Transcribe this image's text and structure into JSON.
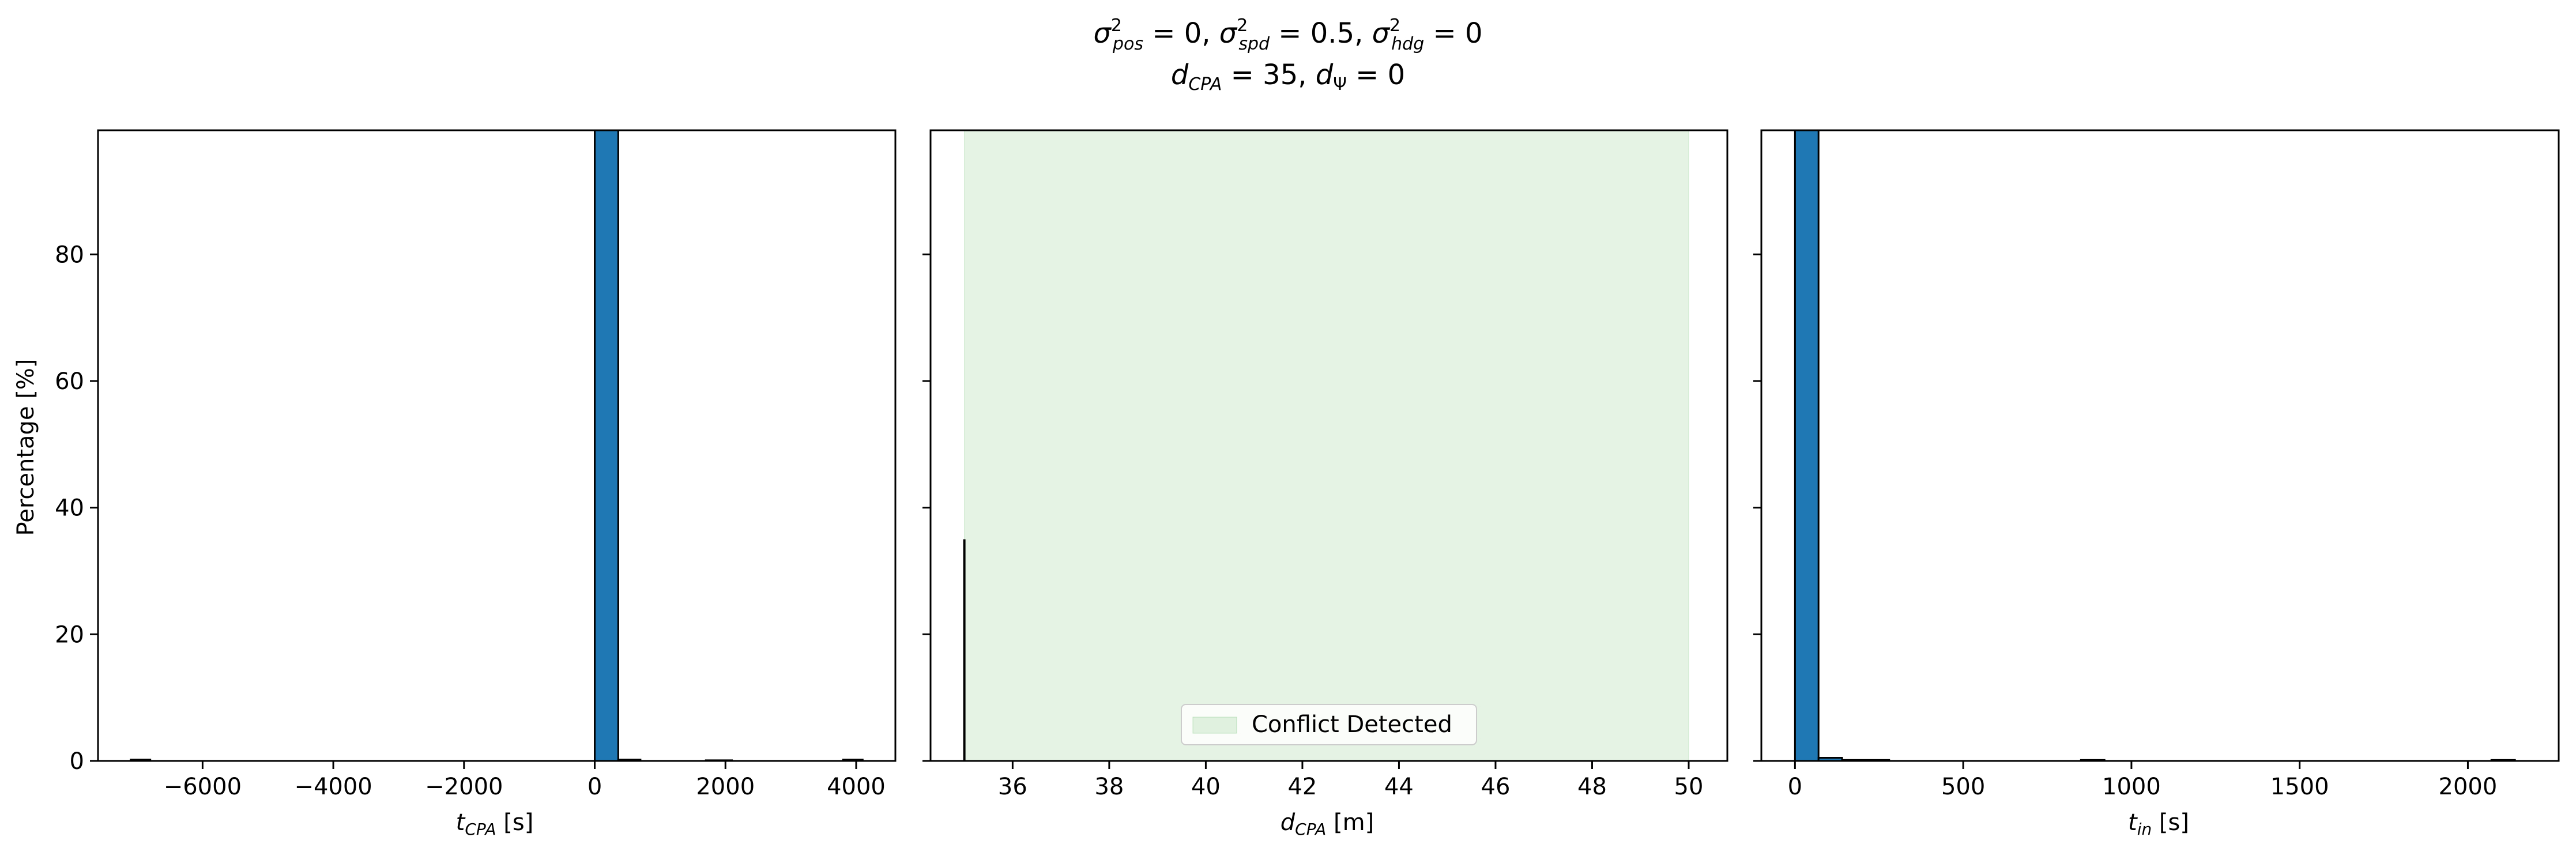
{
  "figure": {
    "title_line1": "σ²pos = 0, σ²spd = 0.5, σ²hdg = 0",
    "title_line2": "dCPA = 35, dΨ = 0"
  },
  "chart_data": [
    {
      "type": "bar",
      "panel": "left",
      "xlabel": "t_CPA [s]",
      "ylabel": "Percentage [%]",
      "xlim": [
        -7600,
        4600
      ],
      "ylim": [
        0,
        99.6
      ],
      "xticks": [
        -6000,
        -4000,
        -2000,
        0,
        2000,
        4000
      ],
      "xtick_labels": [
        "−6000",
        "−4000",
        "−2000",
        "0",
        "2000",
        "4000"
      ],
      "yticks": [
        0,
        20,
        40,
        60,
        80
      ],
      "ytick_labels": [
        "0",
        "20",
        "40",
        "60",
        "80"
      ],
      "bars": [
        {
          "x0": -7100,
          "x1": -6800,
          "value": 0.2
        },
        {
          "x0": 0,
          "x1": 360,
          "value": 99.6
        },
        {
          "x0": 360,
          "x1": 700,
          "value": 0.2
        },
        {
          "x0": 1700,
          "x1": 2100,
          "value": 0.1
        },
        {
          "x0": 3800,
          "x1": 4100,
          "value": 0.2
        }
      ],
      "bar_color": "#1f77b4"
    },
    {
      "type": "bar",
      "panel": "middle",
      "xlabel": "d_CPA [m]",
      "ylabel": "",
      "xlim": [
        34.3,
        50.8
      ],
      "ylim": [
        0,
        99.6
      ],
      "xticks": [
        36,
        38,
        40,
        42,
        44,
        46,
        48,
        50
      ],
      "xtick_labels": [
        "36",
        "38",
        "40",
        "42",
        "44",
        "46",
        "48",
        "50"
      ],
      "yticks": [
        0,
        20,
        40,
        60,
        80
      ],
      "bars": [
        {
          "x0": 35.0,
          "x1": 35.0,
          "value": 35
        }
      ],
      "bar_color": "#1f77b4",
      "shaded_region": {
        "x0": 35,
        "x1": 50,
        "label": "Conflict Detected",
        "color": "#2ca02c",
        "alpha": 0.12
      },
      "legend": {
        "entries": [
          "Conflict Detected"
        ],
        "placement": "lower center"
      }
    },
    {
      "type": "bar",
      "panel": "right",
      "xlabel": "t_in [s]",
      "ylabel": "",
      "xlim": [
        -100,
        2270
      ],
      "ylim": [
        0,
        99.6
      ],
      "xticks": [
        0,
        500,
        1000,
        1500,
        2000
      ],
      "xtick_labels": [
        "0",
        "500",
        "1000",
        "1500",
        "2000"
      ],
      "yticks": [
        0,
        20,
        40,
        60,
        80
      ],
      "bars": [
        {
          "x0": 0,
          "x1": 70,
          "value": 99.6
        },
        {
          "x0": 70,
          "x1": 140,
          "value": 0.5
        },
        {
          "x0": 140,
          "x1": 280,
          "value": 0.15
        },
        {
          "x0": 850,
          "x1": 920,
          "value": 0.15
        },
        {
          "x0": 2070,
          "x1": 2140,
          "value": 0.15
        }
      ],
      "bar_color": "#1f77b4"
    }
  ]
}
